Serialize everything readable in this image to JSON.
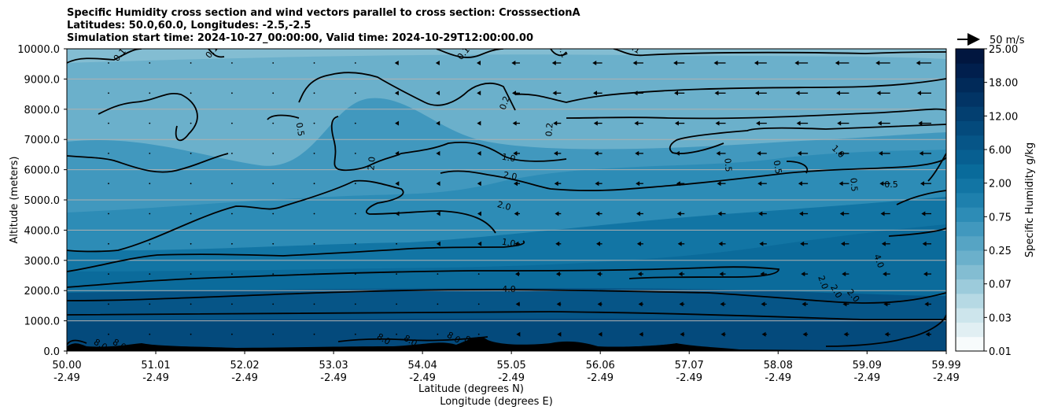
{
  "chart_data": {
    "type": "contour",
    "title_lines": [
      "Specific Humidity cross section and wind vectors parallel to cross section: CrosssectionA",
      "Latitudes: 50.0,60.0, Longitudes: -2.5,-2.5",
      "Simulation start time: 2024-10-27_00:00:00, Valid time: 2024-10-29T12:00:00.00"
    ],
    "ylabel": "Altitude (meters)",
    "xlabel_lines": [
      "Latitude (degrees N)",
      "Longitude (degrees E)"
    ],
    "ylim": [
      0,
      10000
    ],
    "xlim": [
      50.0,
      59.99
    ],
    "y_ticks": [
      "0.0",
      "1000.0",
      "2000.0",
      "3000.0",
      "4000.0",
      "5000.0",
      "6000.0",
      "7000.0",
      "8000.0",
      "9000.0",
      "10000.0"
    ],
    "x_ticks": [
      {
        "lat": "50.00",
        "lon": "-2.49"
      },
      {
        "lat": "51.01",
        "lon": "-2.49"
      },
      {
        "lat": "52.02",
        "lon": "-2.49"
      },
      {
        "lat": "53.03",
        "lon": "-2.49"
      },
      {
        "lat": "54.04",
        "lon": "-2.49"
      },
      {
        "lat": "55.05",
        "lon": "-2.49"
      },
      {
        "lat": "56.06",
        "lon": "-2.49"
      },
      {
        "lat": "57.07",
        "lon": "-2.49"
      },
      {
        "lat": "58.08",
        "lon": "-2.49"
      },
      {
        "lat": "59.09",
        "lon": "-2.49"
      },
      {
        "lat": "59.99",
        "lon": "-2.49"
      }
    ],
    "grid": "horizontal",
    "colorbar": {
      "label": "Specific Humidity g/kg",
      "levels": [
        "0.01",
        "0.03",
        "0.07",
        "0.25",
        "0.75",
        "2.00",
        "6.00",
        "12.00",
        "18.00",
        "25.00"
      ],
      "colors": [
        "#f7fbfc",
        "#e1eff3",
        "#cde5ec",
        "#b6d9e4",
        "#9ccbdb",
        "#83bdd2",
        "#6bb0cb",
        "#56a4c4",
        "#4198be",
        "#2d8cb6",
        "#1e80ad",
        "#1275a4",
        "#096b9b",
        "#075f91",
        "#065587",
        "#044a7c",
        "#033f70",
        "#023465",
        "#012a59",
        "#011f4d",
        "#01163f"
      ]
    },
    "contour_labels": [
      "0.1",
      "0.2",
      "0.5",
      "1.0",
      "2.0",
      "4.0",
      "8.0"
    ],
    "quiver_key": "50 m/s",
    "wind_direction": "southward (leftward), strongest above 8000 m north of 56 N"
  }
}
